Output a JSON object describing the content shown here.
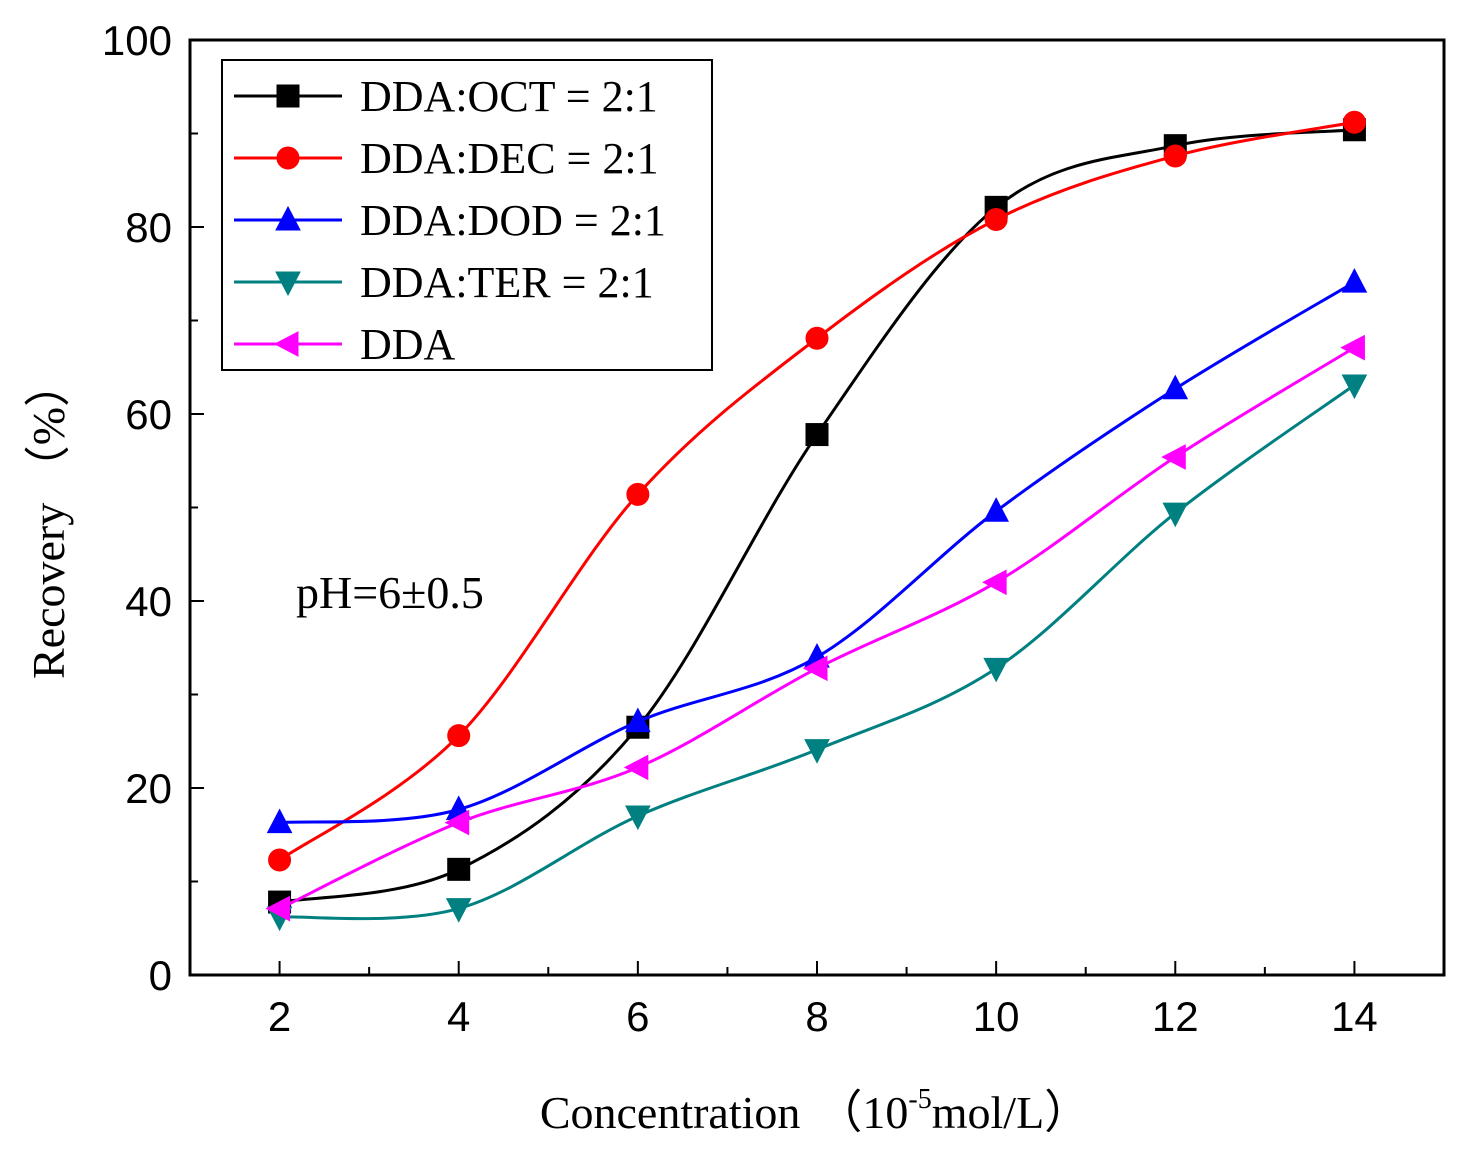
{
  "chart_data": {
    "type": "line",
    "x": [
      2,
      4,
      6,
      8,
      10,
      12,
      14
    ],
    "xlabel_main": "Concentration",
    "xlabel_unit_open": "（10",
    "xlabel_unit_exp": "-5",
    "xlabel_unit_close": "mol/L）",
    "ylabel": "Recovery （%）",
    "xlim": [
      1,
      15
    ],
    "ylim": [
      0,
      100
    ],
    "xticks": [
      2,
      4,
      6,
      8,
      10,
      12,
      14
    ],
    "yticks": [
      0,
      20,
      40,
      60,
      80,
      100
    ],
    "grid": false,
    "legend_position": "top-left",
    "annotation": "pH=6±0.5",
    "series": [
      {
        "name": "DDA:OCT = 2:1",
        "color": "#000000",
        "marker": "square",
        "values": [
          7.8,
          11.3,
          26.5,
          57.8,
          82.1,
          88.7,
          90.4
        ]
      },
      {
        "name": "DDA:DEC = 2:1",
        "color": "#ff0000",
        "marker": "circle",
        "values": [
          12.3,
          25.6,
          51.4,
          68.1,
          80.8,
          87.6,
          91.2
        ]
      },
      {
        "name": "DDA:DOD = 2:1",
        "color": "#0000ff",
        "marker": "triangle-up",
        "values": [
          16.3,
          17.7,
          27.1,
          34.0,
          49.6,
          62.7,
          74.1
        ]
      },
      {
        "name": "DDA:TER = 2:1",
        "color": "#008080",
        "marker": "triangle-down",
        "values": [
          6.2,
          7.1,
          17.0,
          24.1,
          32.8,
          49.4,
          63.1
        ]
      },
      {
        "name": "DDA",
        "color": "#ff00ff",
        "marker": "triangle-left",
        "values": [
          7.1,
          16.3,
          22.2,
          32.8,
          42.0,
          55.4,
          67.1
        ]
      }
    ]
  }
}
